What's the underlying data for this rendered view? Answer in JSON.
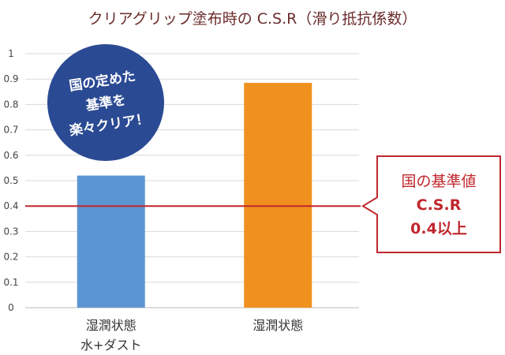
{
  "chart_data": {
    "type": "bar",
    "title": "クリアグリップ塗布時の C.S.R（滑り抵抗係数）",
    "categories": [
      [
        "湿潤状態",
        "水+ダスト"
      ],
      [
        "湿潤状態"
      ]
    ],
    "values": [
      0.52,
      0.885
    ],
    "bar_colors": [
      "#5b96d3",
      "#f0901e"
    ],
    "ylim": [
      0,
      1
    ],
    "yticks": [
      "0",
      "0.1",
      "0.2",
      "0.3",
      "0.4",
      "0.5",
      "0.6",
      "0.7",
      "0.8",
      "0.9",
      "1"
    ],
    "grid": true,
    "reference_line": {
      "value": 0.4,
      "color": "#c0272d"
    },
    "callout": {
      "lines": [
        "国の基準値",
        "C.S.R",
        "0.4以上"
      ],
      "color": "#c0272d"
    },
    "badge": {
      "lines": [
        "国の定めた",
        "基準を",
        "楽々クリア！"
      ],
      "color": "#2b4a94"
    }
  }
}
